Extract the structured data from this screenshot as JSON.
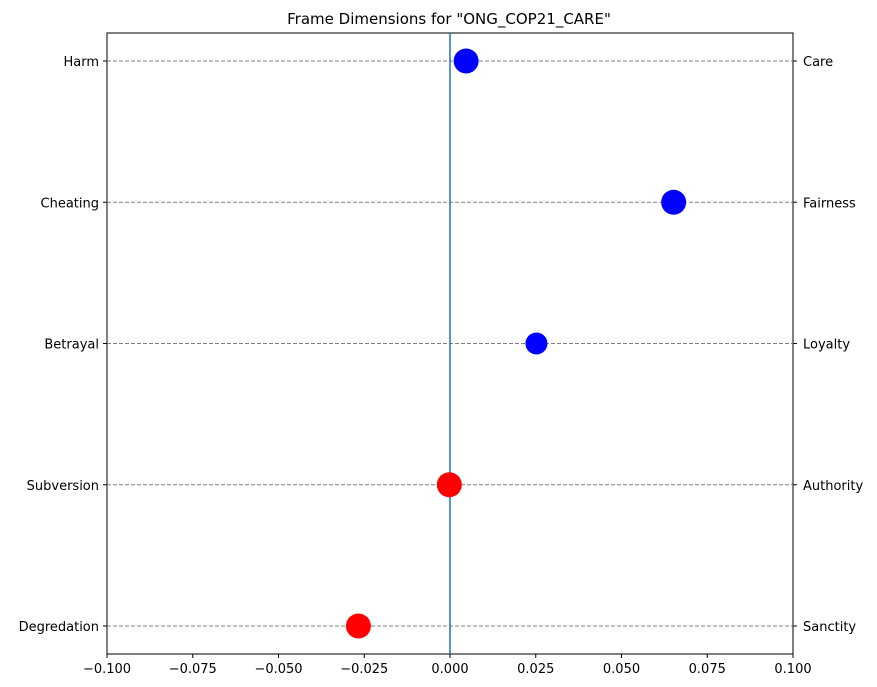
{
  "chart_data": {
    "type": "scatter",
    "title": "Frame Dimensions for \"ONG_COP21_CARE\"",
    "xlabel": "",
    "ylabel": "",
    "xlim": [
      -0.1,
      0.1
    ],
    "x_ticks": [
      -0.1,
      -0.075,
      -0.05,
      -0.025,
      0.0,
      0.025,
      0.05,
      0.075,
      0.1
    ],
    "x_tick_labels": [
      "−0.100",
      "−0.075",
      "−0.050",
      "−0.025",
      "0.000",
      "0.025",
      "0.050",
      "0.075",
      "0.100"
    ],
    "reference_line_x": 0.0,
    "grid": "horizontal dashed at each category",
    "categories_left": [
      "Harm",
      "Cheating",
      "Betrayal",
      "Subversion",
      "Degredation"
    ],
    "categories_right": [
      "Care",
      "Fairness",
      "Loyalty",
      "Authority",
      "Sanctity"
    ],
    "points": [
      {
        "x": 0.0047,
        "color": "#0000ff",
        "size": "large"
      },
      {
        "x": 0.0652,
        "color": "#0000ff",
        "size": "large"
      },
      {
        "x": 0.0252,
        "color": "#0000ff",
        "size": "medium"
      },
      {
        "x": -0.0002,
        "color": "#ff0000",
        "size": "large"
      },
      {
        "x": -0.0267,
        "color": "#ff0000",
        "size": "large"
      }
    ],
    "colors": {
      "positive": "#0000ff",
      "negative": "#ff0000",
      "zero_line": "#1f77b4",
      "grid": "#808080"
    }
  }
}
